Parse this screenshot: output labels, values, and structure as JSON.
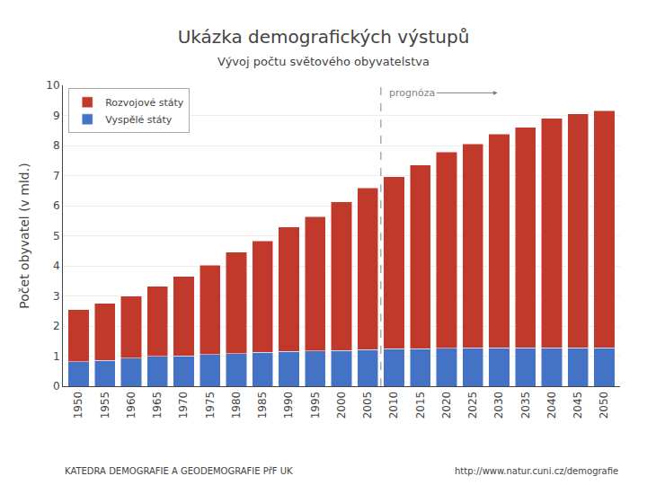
{
  "chart_data": {
    "type": "bar",
    "stacked": true,
    "title": "Ukázka demografických výstupů",
    "subtitle": "Vývoj počtu světového obyvatelstva",
    "ylabel": "Počet obyvatel (v mld.)",
    "x": [
      1950,
      1955,
      1960,
      1965,
      1970,
      1975,
      1980,
      1985,
      1990,
      1995,
      2000,
      2005,
      2010,
      2015,
      2020,
      2025,
      2030,
      2035,
      2040,
      2045,
      2050
    ],
    "series": [
      {
        "name": "Vyspělé státy",
        "color": "#4472C4",
        "values": [
          0.81,
          0.86,
          0.93,
          0.99,
          1.01,
          1.05,
          1.08,
          1.12,
          1.15,
          1.17,
          1.19,
          1.21,
          1.24,
          1.25,
          1.26,
          1.27,
          1.27,
          1.28,
          1.28,
          1.28,
          1.28
        ]
      },
      {
        "name": "Rozvojové státy",
        "color": "#C0392B",
        "values": [
          1.74,
          1.89,
          2.07,
          2.33,
          2.64,
          2.97,
          3.37,
          3.71,
          4.14,
          4.47,
          4.93,
          5.38,
          5.73,
          6.1,
          6.52,
          6.78,
          7.11,
          7.33,
          7.62,
          7.77,
          7.87
        ]
      }
    ],
    "xlim": [
      1947,
      2053
    ],
    "xticks": [
      1950,
      1955,
      1960,
      1965,
      1970,
      1975,
      1980,
      1985,
      1990,
      1995,
      2000,
      2005,
      2010,
      2015,
      2020,
      2025,
      2030,
      2035,
      2040,
      2045,
      2050
    ],
    "ylim": [
      0,
      10
    ],
    "yticks": [
      0,
      1,
      2,
      3,
      4,
      5,
      6,
      7,
      8,
      9,
      10
    ],
    "grid": "y",
    "legend": "upper left",
    "annotations": [
      {
        "text": "prognóza",
        "x": 2007.5,
        "y": 9.75
      },
      {
        "text": "KATEDRA DEMOGRAFIE A GEODEMOGRAFIE PřF UK"
      },
      {
        "text": "http://www.natur.cuni.cz/demografie"
      }
    ]
  }
}
